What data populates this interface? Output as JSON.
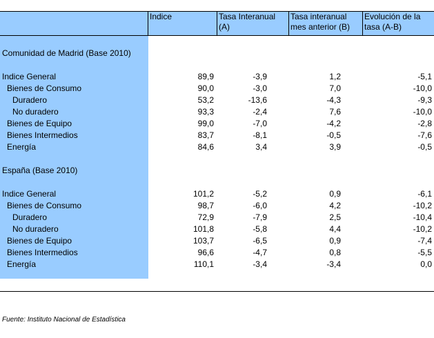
{
  "header": {
    "col1": "Indice",
    "col2": "Tasa Interanual (A)",
    "col3": "Tasa interanual mes anterior (B)",
    "col4": "Evolución de la tasa (A-B)"
  },
  "madrid": {
    "title": "Comunidad de Madrid (Base 2010)",
    "rows": [
      {
        "label": "Indice General",
        "indice": "89,9",
        "tasa_a": "-3,9",
        "tasa_b": "1,2",
        "evol": "-5,1"
      },
      {
        "label": "Bienes de Consumo",
        "indice": "90,0",
        "tasa_a": "-3,0",
        "tasa_b": "7,0",
        "evol": "-10,0"
      },
      {
        "label": "Duradero",
        "indice": "53,2",
        "tasa_a": "-13,6",
        "tasa_b": "-4,3",
        "evol": "-9,3"
      },
      {
        "label": "No duradero",
        "indice": "93,3",
        "tasa_a": "-2,4",
        "tasa_b": "7,6",
        "evol": "-10,0"
      },
      {
        "label": "Bienes de Equipo",
        "indice": "99,0",
        "tasa_a": "-7,0",
        "tasa_b": "-4,2",
        "evol": "-2,8"
      },
      {
        "label": "Bienes Intermedios",
        "indice": "83,7",
        "tasa_a": "-8,1",
        "tasa_b": "-0,5",
        "evol": "-7,6"
      },
      {
        "label": "Energía",
        "indice": "84,6",
        "tasa_a": "3,4",
        "tasa_b": "3,9",
        "evol": "-0,5"
      }
    ]
  },
  "espana": {
    "title": "España (Base 2010)",
    "rows": [
      {
        "label": "Indice General",
        "indice": "101,2",
        "tasa_a": "-5,2",
        "tasa_b": "0,9",
        "evol": "-6,1"
      },
      {
        "label": "Bienes de Consumo",
        "indice": "98,7",
        "tasa_a": "-6,0",
        "tasa_b": "4,2",
        "evol": "-10,2"
      },
      {
        "label": "Duradero",
        "indice": "72,9",
        "tasa_a": "-7,9",
        "tasa_b": "2,5",
        "evol": "-10,4"
      },
      {
        "label": "No duradero",
        "indice": "101,8",
        "tasa_a": "-5,8",
        "tasa_b": "4,4",
        "evol": "-10,2"
      },
      {
        "label": "Bienes de Equipo",
        "indice": "103,7",
        "tasa_a": "-6,5",
        "tasa_b": "0,9",
        "evol": "-7,4"
      },
      {
        "label": "Bienes Intermedios",
        "indice": "96,6",
        "tasa_a": "-4,7",
        "tasa_b": "0,8",
        "evol": "-5,5"
      },
      {
        "label": "Energía",
        "indice": "110,1",
        "tasa_a": "-3,4",
        "tasa_b": "-3,4",
        "evol": "0,0"
      }
    ]
  },
  "footer": {
    "source": "Fuente: Instituto Nacional de Estadística"
  }
}
